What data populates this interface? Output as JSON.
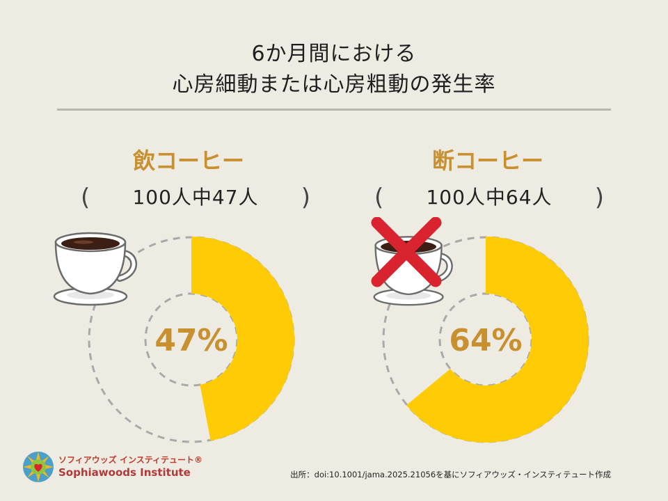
{
  "title": {
    "line1": "6か月間における",
    "line2": "心房細動または心房粗動の発生率"
  },
  "chart_data": [
    {
      "type": "pie",
      "name": "飲コーヒー",
      "count_text": "100人中47人",
      "value": 47,
      "total": 100,
      "label": "47%",
      "filled_color": "#ffcb05",
      "remainder_style": "dashed-gray"
    },
    {
      "type": "pie",
      "name": "断コーヒー",
      "count_text": "100人中64人",
      "value": 64,
      "total": 100,
      "label": "64%",
      "filled_color": "#ffcb05",
      "remainder_style": "dashed-gray"
    }
  ],
  "parens": {
    "open": "(",
    "close": ")"
  },
  "icons": {
    "left": "coffee-cup-icon",
    "right": "crossed-out-coffee-cup-icon"
  },
  "logo": {
    "jp": "ソフィアウッズ インスティテュート®",
    "en": "Sophiawoods Institute"
  },
  "source": "出所：doi:10.1001/jama.2025.21056を基にソフィアウッズ・インスティテュート作成",
  "colors": {
    "background": "#eeebe2",
    "accent_text": "#c8902f",
    "donut": "#ffcb05",
    "dashed": "#a9a9a9",
    "cross": "#d9232e"
  }
}
